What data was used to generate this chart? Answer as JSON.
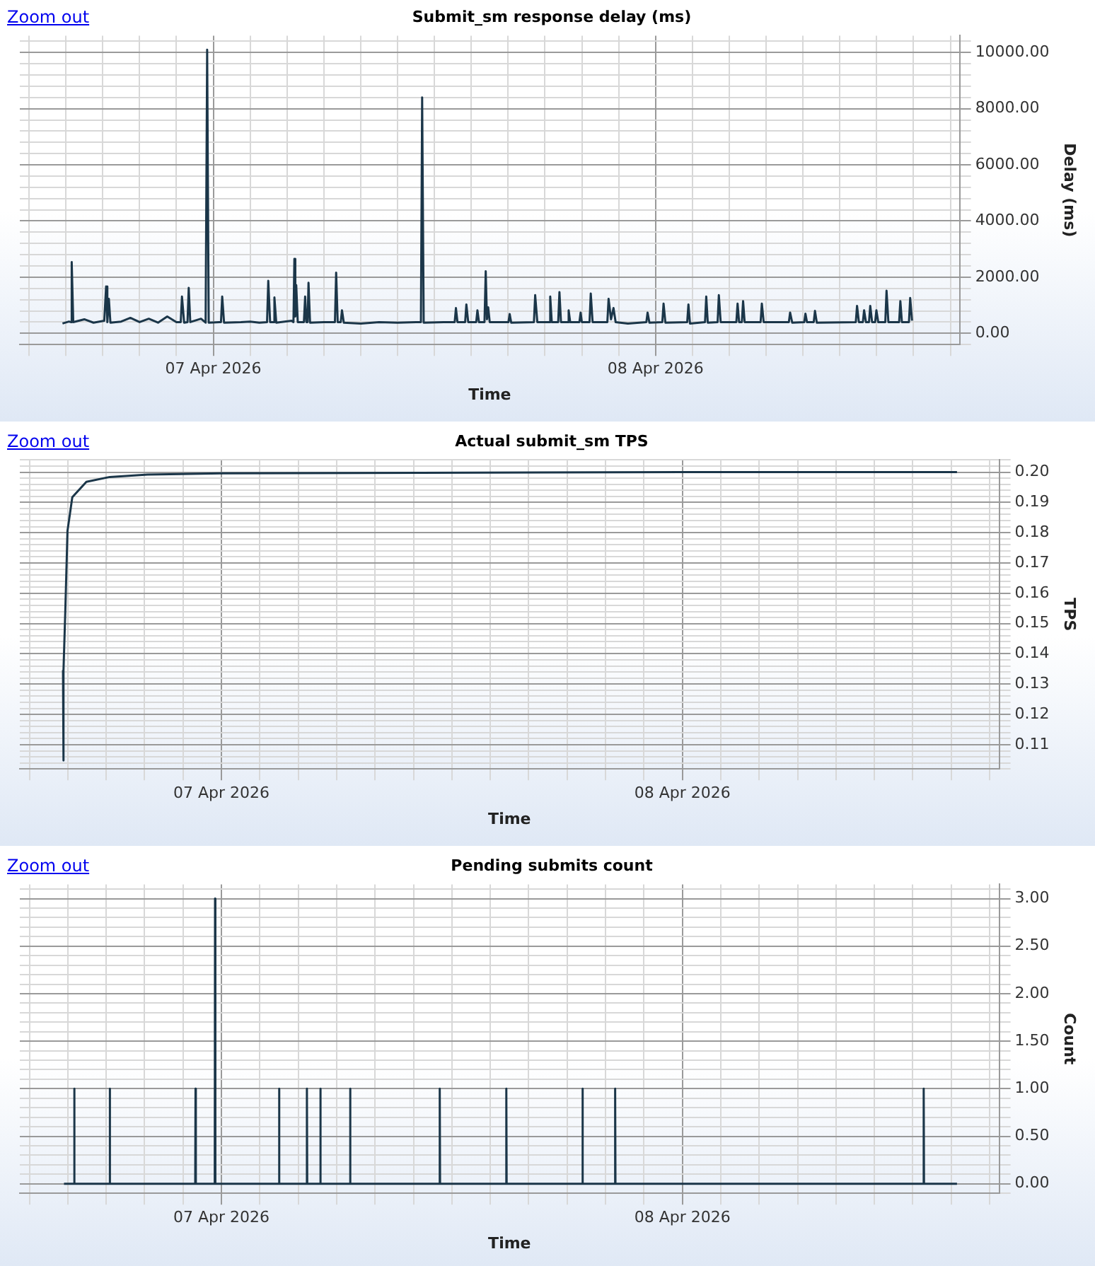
{
  "chart_data": [
    {
      "type": "line",
      "title": "Submit_sm response delay (ms)",
      "xlabel": "Time",
      "ylabel": "Delay (ms)",
      "annotations": [
        "Zoom out"
      ],
      "color": "#1b3649",
      "grid": true,
      "xlim": [
        "2026-04-06T13:30",
        "2026-04-08T16:30"
      ],
      "xticks": [
        {
          "value": "2026-04-06T14:00",
          "label": null
        },
        {
          "value": "2026-04-06T16:00",
          "label": null
        },
        {
          "value": "2026-04-06T18:00",
          "label": null
        },
        {
          "value": "2026-04-06T20:00",
          "label": null
        },
        {
          "value": "2026-04-06T22:00",
          "label": null
        },
        {
          "value": "2026-04-07T00:00",
          "label": "07 Apr 2026"
        },
        {
          "value": "2026-04-07T02:00",
          "label": null
        },
        {
          "value": "2026-04-07T04:00",
          "label": null
        },
        {
          "value": "2026-04-07T06:00",
          "label": null
        },
        {
          "value": "2026-04-07T08:00",
          "label": null
        },
        {
          "value": "2026-04-07T10:00",
          "label": null
        },
        {
          "value": "2026-04-07T12:00",
          "label": null
        },
        {
          "value": "2026-04-07T14:00",
          "label": null
        },
        {
          "value": "2026-04-07T16:00",
          "label": null
        },
        {
          "value": "2026-04-07T18:00",
          "label": null
        },
        {
          "value": "2026-04-07T20:00",
          "label": null
        },
        {
          "value": "2026-04-07T22:00",
          "label": null
        },
        {
          "value": "2026-04-08T00:00",
          "label": "08 Apr 2026"
        },
        {
          "value": "2026-04-08T02:00",
          "label": null
        },
        {
          "value": "2026-04-08T04:00",
          "label": null
        },
        {
          "value": "2026-04-08T06:00",
          "label": null
        },
        {
          "value": "2026-04-08T08:00",
          "label": null
        },
        {
          "value": "2026-04-08T10:00",
          "label": null
        },
        {
          "value": "2026-04-08T12:00",
          "label": null
        },
        {
          "value": "2026-04-08T14:00",
          "label": null
        },
        {
          "value": "2026-04-08T16:00",
          "label": null
        }
      ],
      "ylim": [
        -400,
        10600
      ],
      "yticks": [
        {
          "value": -400,
          "label": null
        },
        {
          "value": 0,
          "label": "0.00"
        },
        {
          "value": 400,
          "label": null
        },
        {
          "value": 800,
          "label": null
        },
        {
          "value": 1200,
          "label": null
        },
        {
          "value": 1600,
          "label": null
        },
        {
          "value": 2000,
          "label": "2000.00"
        },
        {
          "value": 2400,
          "label": null
        },
        {
          "value": 2800,
          "label": null
        },
        {
          "value": 3200,
          "label": null
        },
        {
          "value": 3600,
          "label": null
        },
        {
          "value": 4000,
          "label": "4000.00"
        },
        {
          "value": 4400,
          "label": null
        },
        {
          "value": 4800,
          "label": null
        },
        {
          "value": 5200,
          "label": null
        },
        {
          "value": 5600,
          "label": null
        },
        {
          "value": 6000,
          "label": "6000.00"
        },
        {
          "value": 6400,
          "label": null
        },
        {
          "value": 6800,
          "label": null
        },
        {
          "value": 7200,
          "label": null
        },
        {
          "value": 7600,
          "label": null
        },
        {
          "value": 8000,
          "label": "8000.00"
        },
        {
          "value": 8400,
          "label": null
        },
        {
          "value": 8800,
          "label": null
        },
        {
          "value": 9200,
          "label": null
        },
        {
          "value": 9600,
          "label": null
        },
        {
          "value": 10000,
          "label": "10000.00"
        },
        {
          "value": 10400,
          "label": null
        }
      ],
      "x": [
        "2026-04-06T15:49",
        "2026-04-06T16:10",
        "2026-04-06T16:16",
        "2026-04-06T16:19",
        "2026-04-06T16:24",
        "2026-04-06T17:00",
        "2026-04-06T17:30",
        "2026-04-06T18:05",
        "2026-04-06T18:11",
        "2026-04-06T18:15",
        "2026-04-06T18:20",
        "2026-04-06T18:25",
        "2026-04-06T19:00",
        "2026-04-06T19:30",
        "2026-04-06T20:00",
        "2026-04-06T20:30",
        "2026-04-06T21:00",
        "2026-04-06T21:30",
        "2026-04-06T22:00",
        "2026-04-06T22:14",
        "2026-04-06T22:18",
        "2026-04-06T22:25",
        "2026-04-06T22:36",
        "2026-04-06T22:40",
        "2026-04-06T22:45",
        "2026-04-06T23:20",
        "2026-04-06T23:35",
        "2026-04-06T23:40",
        "2026-04-06T23:45",
        "2026-04-07T00:20",
        "2026-04-07T00:25",
        "2026-04-07T00:29",
        "2026-04-07T00:35",
        "2026-04-07T01:30",
        "2026-04-07T02:00",
        "2026-04-07T02:30",
        "2026-04-07T02:55",
        "2026-04-07T02:59",
        "2026-04-07T03:05",
        "2026-04-07T03:15",
        "2026-04-07T03:19",
        "2026-04-07T03:25",
        "2026-04-07T04:15",
        "2026-04-07T04:21",
        "2026-04-07T04:24",
        "2026-04-07T04:27",
        "2026-04-07T04:30",
        "2026-04-07T04:35",
        "2026-04-07T04:55",
        "2026-04-07T04:59",
        "2026-04-07T05:03",
        "2026-04-07T05:07",
        "2026-04-07T05:10",
        "2026-04-07T05:15",
        "2026-04-07T06:00",
        "2026-04-07T06:36",
        "2026-04-07T06:40",
        "2026-04-07T06:45",
        "2026-04-07T06:55",
        "2026-04-07T06:59",
        "2026-04-07T07:05",
        "2026-04-07T08:00",
        "2026-04-07T09:00",
        "2026-04-07T10:00",
        "2026-04-07T11:00",
        "2026-04-07T11:16",
        "2026-04-07T11:20",
        "2026-04-07T11:25",
        "2026-04-07T12:30",
        "2026-04-07T13:06",
        "2026-04-07T13:10",
        "2026-04-07T13:15",
        "2026-04-07T13:40",
        "2026-04-07T13:44",
        "2026-04-07T13:50",
        "2026-04-07T14:16",
        "2026-04-07T14:20",
        "2026-04-07T14:25",
        "2026-04-07T14:43",
        "2026-04-07T14:47",
        "2026-04-07T14:51",
        "2026-04-07T14:55",
        "2026-04-07T15:00",
        "2026-04-07T16:01",
        "2026-04-07T16:05",
        "2026-04-07T16:10",
        "2026-04-07T17:24",
        "2026-04-07T17:28",
        "2026-04-07T17:35",
        "2026-04-07T18:13",
        "2026-04-07T18:17",
        "2026-04-07T18:22",
        "2026-04-07T18:43",
        "2026-04-07T18:47",
        "2026-04-07T18:52",
        "2026-04-07T19:13",
        "2026-04-07T19:17",
        "2026-04-07T19:22",
        "2026-04-07T19:52",
        "2026-04-07T19:56",
        "2026-04-07T20:00",
        "2026-04-07T20:25",
        "2026-04-07T20:29",
        "2026-04-07T20:35",
        "2026-04-07T21:23",
        "2026-04-07T21:27",
        "2026-04-07T21:35",
        "2026-04-07T21:43",
        "2026-04-07T21:50",
        "2026-04-07T22:30",
        "2026-04-07T23:30",
        "2026-04-07T23:34",
        "2026-04-07T23:40",
        "2026-04-08T00:22",
        "2026-04-08T00:26",
        "2026-04-08T00:32",
        "2026-04-08T01:43",
        "2026-04-08T01:47",
        "2026-04-08T01:52",
        "2026-04-08T02:41",
        "2026-04-08T02:45",
        "2026-04-08T02:50",
        "2026-04-08T03:22",
        "2026-04-08T03:26",
        "2026-04-08T03:32",
        "2026-04-08T04:23",
        "2026-04-08T04:27",
        "2026-04-08T04:32",
        "2026-04-08T04:41",
        "2026-04-08T04:45",
        "2026-04-08T04:50",
        "2026-04-08T05:42",
        "2026-04-08T05:46",
        "2026-04-08T05:52",
        "2026-04-08T07:14",
        "2026-04-08T07:18",
        "2026-04-08T07:25",
        "2026-04-08T08:04",
        "2026-04-08T08:08",
        "2026-04-08T08:13",
        "2026-04-08T08:35",
        "2026-04-08T08:39",
        "2026-04-08T08:45",
        "2026-04-08T10:52",
        "2026-04-08T10:56",
        "2026-04-08T11:02",
        "2026-04-08T11:15",
        "2026-04-08T11:19",
        "2026-04-08T11:25",
        "2026-04-08T11:35",
        "2026-04-08T11:39",
        "2026-04-08T11:45",
        "2026-04-08T11:55",
        "2026-04-08T11:59",
        "2026-04-08T12:05",
        "2026-04-08T12:28",
        "2026-04-08T12:32",
        "2026-04-08T12:38",
        "2026-04-08T13:13",
        "2026-04-08T13:17",
        "2026-04-08T13:22",
        "2026-04-08T13:45",
        "2026-04-08T13:49",
        "2026-04-08T13:55"
      ],
      "values": [
        350,
        420,
        400,
        2540,
        400,
        500,
        380,
        450,
        1670,
        400,
        1230,
        380,
        420,
        550,
        400,
        520,
        380,
        600,
        400,
        400,
        1310,
        380,
        400,
        1620,
        400,
        520,
        380,
        10100,
        380,
        400,
        400,
        1310,
        380,
        400,
        420,
        380,
        400,
        1870,
        400,
        400,
        1280,
        380,
        450,
        400,
        2650,
        600,
        1720,
        400,
        400,
        1310,
        400,
        400,
        1800,
        380,
        400,
        400,
        2160,
        400,
        400,
        820,
        380,
        350,
        400,
        380,
        400,
        400,
        8400,
        380,
        400,
        400,
        900,
        400,
        400,
        1030,
        400,
        400,
        820,
        400,
        400,
        2210,
        500,
        930,
        400,
        400,
        690,
        380,
        400,
        1360,
        400,
        400,
        1310,
        400,
        400,
        1470,
        400,
        400,
        820,
        400,
        400,
        740,
        400,
        400,
        1420,
        400,
        400,
        1230,
        500,
        900,
        400,
        350,
        400,
        740,
        380,
        400,
        1060,
        380,
        400,
        1030,
        350,
        400,
        1310,
        380,
        400,
        1360,
        400,
        400,
        1060,
        400,
        400,
        1150,
        400,
        400,
        1060,
        400,
        400,
        740,
        380,
        400,
        700,
        400,
        400,
        800,
        380,
        400,
        980,
        400,
        400,
        820,
        400,
        400,
        980,
        400,
        400,
        820,
        400,
        400,
        1520,
        400,
        400,
        1150,
        400,
        400,
        1260,
        450
      ]
    },
    {
      "type": "line",
      "title": "Actual submit_sm TPS",
      "xlabel": "Time",
      "ylabel": "TPS",
      "annotations": [
        "Zoom out"
      ],
      "color": "#1b3649",
      "grid": true,
      "xlim": [
        "2026-04-06T13:30",
        "2026-04-08T16:30"
      ],
      "xticks": [
        {
          "value": "2026-04-06T14:00",
          "label": null
        },
        {
          "value": "2026-04-06T16:00",
          "label": null
        },
        {
          "value": "2026-04-06T18:00",
          "label": null
        },
        {
          "value": "2026-04-06T20:00",
          "label": null
        },
        {
          "value": "2026-04-06T22:00",
          "label": null
        },
        {
          "value": "2026-04-07T00:00",
          "label": "07 Apr 2026"
        },
        {
          "value": "2026-04-07T02:00",
          "label": null
        },
        {
          "value": "2026-04-07T04:00",
          "label": null
        },
        {
          "value": "2026-04-07T06:00",
          "label": null
        },
        {
          "value": "2026-04-07T08:00",
          "label": null
        },
        {
          "value": "2026-04-07T10:00",
          "label": null
        },
        {
          "value": "2026-04-07T12:00",
          "label": null
        },
        {
          "value": "2026-04-07T14:00",
          "label": null
        },
        {
          "value": "2026-04-07T16:00",
          "label": null
        },
        {
          "value": "2026-04-07T18:00",
          "label": null
        },
        {
          "value": "2026-04-07T20:00",
          "label": null
        },
        {
          "value": "2026-04-07T22:00",
          "label": null
        },
        {
          "value": "2026-04-08T00:00",
          "label": "08 Apr 2026"
        },
        {
          "value": "2026-04-08T02:00",
          "label": null
        },
        {
          "value": "2026-04-08T04:00",
          "label": null
        },
        {
          "value": "2026-04-08T06:00",
          "label": null
        },
        {
          "value": "2026-04-08T08:00",
          "label": null
        },
        {
          "value": "2026-04-08T10:00",
          "label": null
        },
        {
          "value": "2026-04-08T12:00",
          "label": null
        },
        {
          "value": "2026-04-08T14:00",
          "label": null
        },
        {
          "value": "2026-04-08T16:00",
          "label": null
        }
      ],
      "ylim": [
        0.102,
        0.204
      ],
      "yticks": [
        {
          "value": 0.102,
          "label": null
        },
        {
          "value": 0.104,
          "label": null
        },
        {
          "value": 0.106,
          "label": null
        },
        {
          "value": 0.108,
          "label": null
        },
        {
          "value": 0.11,
          "label": "0.11"
        },
        {
          "value": 0.112,
          "label": null
        },
        {
          "value": 0.114,
          "label": null
        },
        {
          "value": 0.116,
          "label": null
        },
        {
          "value": 0.118,
          "label": null
        },
        {
          "value": 0.12,
          "label": "0.12"
        },
        {
          "value": 0.122,
          "label": null
        },
        {
          "value": 0.124,
          "label": null
        },
        {
          "value": 0.126,
          "label": null
        },
        {
          "value": 0.128,
          "label": null
        },
        {
          "value": 0.13,
          "label": "0.13"
        },
        {
          "value": 0.132,
          "label": null
        },
        {
          "value": 0.134,
          "label": null
        },
        {
          "value": 0.136,
          "label": null
        },
        {
          "value": 0.138,
          "label": null
        },
        {
          "value": 0.14,
          "label": "0.14"
        },
        {
          "value": 0.142,
          "label": null
        },
        {
          "value": 0.144,
          "label": null
        },
        {
          "value": 0.146,
          "label": null
        },
        {
          "value": 0.148,
          "label": null
        },
        {
          "value": 0.15,
          "label": "0.15"
        },
        {
          "value": 0.152,
          "label": null
        },
        {
          "value": 0.154,
          "label": null
        },
        {
          "value": 0.156,
          "label": null
        },
        {
          "value": 0.158,
          "label": null
        },
        {
          "value": 0.16,
          "label": "0.16"
        },
        {
          "value": 0.162,
          "label": null
        },
        {
          "value": 0.164,
          "label": null
        },
        {
          "value": 0.166,
          "label": null
        },
        {
          "value": 0.168,
          "label": null
        },
        {
          "value": 0.17,
          "label": "0.17"
        },
        {
          "value": 0.172,
          "label": null
        },
        {
          "value": 0.174,
          "label": null
        },
        {
          "value": 0.176,
          "label": null
        },
        {
          "value": 0.178,
          "label": null
        },
        {
          "value": 0.18,
          "label": "0.18"
        },
        {
          "value": 0.182,
          "label": null
        },
        {
          "value": 0.184,
          "label": null
        },
        {
          "value": 0.186,
          "label": null
        },
        {
          "value": 0.188,
          "label": null
        },
        {
          "value": 0.19,
          "label": "0.19"
        },
        {
          "value": 0.192,
          "label": null
        },
        {
          "value": 0.194,
          "label": null
        },
        {
          "value": 0.196,
          "label": null
        },
        {
          "value": 0.198,
          "label": null
        },
        {
          "value": 0.2,
          "label": "0.20"
        },
        {
          "value": 0.202,
          "label": null
        },
        {
          "value": 0.204,
          "label": null
        }
      ],
      "x": [
        "2026-04-06T15:45",
        "2026-04-06T15:46",
        "2026-04-06T15:47",
        "2026-04-06T15:52",
        "2026-04-06T15:59",
        "2026-04-06T16:14",
        "2026-04-06T16:58",
        "2026-04-06T18:11",
        "2026-04-06T20:09",
        "2026-04-07T00:00",
        "2026-04-08T00:00",
        "2026-04-08T14:18"
      ],
      "values": [
        0.1346,
        0.1048,
        0.1346,
        0.1536,
        0.1806,
        0.1917,
        0.1968,
        0.1984,
        0.1992,
        0.1996,
        0.2,
        0.2
      ]
    },
    {
      "type": "line",
      "title": "Pending submits count",
      "xlabel": "Time",
      "ylabel": "Count",
      "annotations": [
        "Zoom out"
      ],
      "color": "#1b3649",
      "grid": true,
      "xlim": [
        "2026-04-06T13:30",
        "2026-04-08T16:30"
      ],
      "xticks": [
        {
          "value": "2026-04-06T14:00",
          "label": null
        },
        {
          "value": "2026-04-06T16:00",
          "label": null
        },
        {
          "value": "2026-04-06T18:00",
          "label": null
        },
        {
          "value": "2026-04-06T20:00",
          "label": null
        },
        {
          "value": "2026-04-06T22:00",
          "label": null
        },
        {
          "value": "2026-04-07T00:00",
          "label": "07 Apr 2026"
        },
        {
          "value": "2026-04-07T02:00",
          "label": null
        },
        {
          "value": "2026-04-07T04:00",
          "label": null
        },
        {
          "value": "2026-04-07T06:00",
          "label": null
        },
        {
          "value": "2026-04-07T08:00",
          "label": null
        },
        {
          "value": "2026-04-07T10:00",
          "label": null
        },
        {
          "value": "2026-04-07T12:00",
          "label": null
        },
        {
          "value": "2026-04-07T14:00",
          "label": null
        },
        {
          "value": "2026-04-07T16:00",
          "label": null
        },
        {
          "value": "2026-04-07T18:00",
          "label": null
        },
        {
          "value": "2026-04-07T20:00",
          "label": null
        },
        {
          "value": "2026-04-07T22:00",
          "label": null
        },
        {
          "value": "2026-04-08T00:00",
          "label": "08 Apr 2026"
        },
        {
          "value": "2026-04-08T02:00",
          "label": null
        },
        {
          "value": "2026-04-08T04:00",
          "label": null
        },
        {
          "value": "2026-04-08T06:00",
          "label": null
        },
        {
          "value": "2026-04-08T08:00",
          "label": null
        },
        {
          "value": "2026-04-08T10:00",
          "label": null
        },
        {
          "value": "2026-04-08T12:00",
          "label": null
        },
        {
          "value": "2026-04-08T14:00",
          "label": null
        },
        {
          "value": "2026-04-08T16:00",
          "label": null
        }
      ],
      "ylim": [
        -0.1,
        3.15
      ],
      "yticks": [
        {
          "value": -0.1,
          "label": null
        },
        {
          "value": 0,
          "label": "0.00"
        },
        {
          "value": 0.1,
          "label": null
        },
        {
          "value": 0.2,
          "label": null
        },
        {
          "value": 0.3,
          "label": null
        },
        {
          "value": 0.4,
          "label": null
        },
        {
          "value": 0.5,
          "label": "0.50"
        },
        {
          "value": 0.6,
          "label": null
        },
        {
          "value": 0.7,
          "label": null
        },
        {
          "value": 0.8,
          "label": null
        },
        {
          "value": 0.9,
          "label": null
        },
        {
          "value": 1,
          "label": "1.00"
        },
        {
          "value": 1.1,
          "label": null
        },
        {
          "value": 1.2,
          "label": null
        },
        {
          "value": 1.3,
          "label": null
        },
        {
          "value": 1.4,
          "label": null
        },
        {
          "value": 1.5,
          "label": "1.50"
        },
        {
          "value": 1.6,
          "label": null
        },
        {
          "value": 1.7,
          "label": null
        },
        {
          "value": 1.8,
          "label": null
        },
        {
          "value": 1.9,
          "label": null
        },
        {
          "value": 2,
          "label": "2.00"
        },
        {
          "value": 2.1,
          "label": null
        },
        {
          "value": 2.2,
          "label": null
        },
        {
          "value": 2.3,
          "label": null
        },
        {
          "value": 2.4,
          "label": null
        },
        {
          "value": 2.5,
          "label": "2.50"
        },
        {
          "value": 2.6,
          "label": null
        },
        {
          "value": 2.7,
          "label": null
        },
        {
          "value": 2.8,
          "label": null
        },
        {
          "value": 2.9,
          "label": null
        },
        {
          "value": 3,
          "label": "3.00"
        },
        {
          "value": 3.1,
          "label": null
        }
      ],
      "x": [
        "2026-04-06T15:48",
        "2026-04-06T16:19",
        "2026-04-06T16:20",
        "2026-04-06T16:21",
        "2026-04-06T18:10",
        "2026-04-06T18:11",
        "2026-04-06T18:12",
        "2026-04-06T22:38",
        "2026-04-06T22:39",
        "2026-04-06T22:40",
        "2026-04-06T23:39",
        "2026-04-06T23:40",
        "2026-04-06T23:41",
        "2026-04-07T02:59",
        "2026-04-07T03:00",
        "2026-04-07T03:01",
        "2026-04-07T04:26",
        "2026-04-07T04:27",
        "2026-04-07T04:28",
        "2026-04-07T05:08",
        "2026-04-07T05:09",
        "2026-04-07T05:10",
        "2026-04-07T06:41",
        "2026-04-07T06:42",
        "2026-04-07T06:43",
        "2026-04-07T11:21",
        "2026-04-07T11:22",
        "2026-04-07T11:23",
        "2026-04-07T14:49",
        "2026-04-07T14:50",
        "2026-04-07T14:51",
        "2026-04-07T18:47",
        "2026-04-07T18:48",
        "2026-04-07T18:49",
        "2026-04-07T20:29",
        "2026-04-07T20:30",
        "2026-04-07T20:31",
        "2026-04-08T12:33",
        "2026-04-08T12:34",
        "2026-04-08T12:35",
        "2026-04-08T14:18"
      ],
      "values": [
        0,
        0,
        1,
        0,
        0,
        1,
        0,
        0,
        1,
        0,
        0,
        3,
        0,
        0,
        1,
        0,
        0,
        1,
        0,
        0,
        1,
        0,
        0,
        1,
        0,
        0,
        1,
        0,
        0,
        1,
        0,
        0,
        1,
        0,
        0,
        1,
        0,
        0,
        1,
        0,
        0
      ]
    }
  ]
}
